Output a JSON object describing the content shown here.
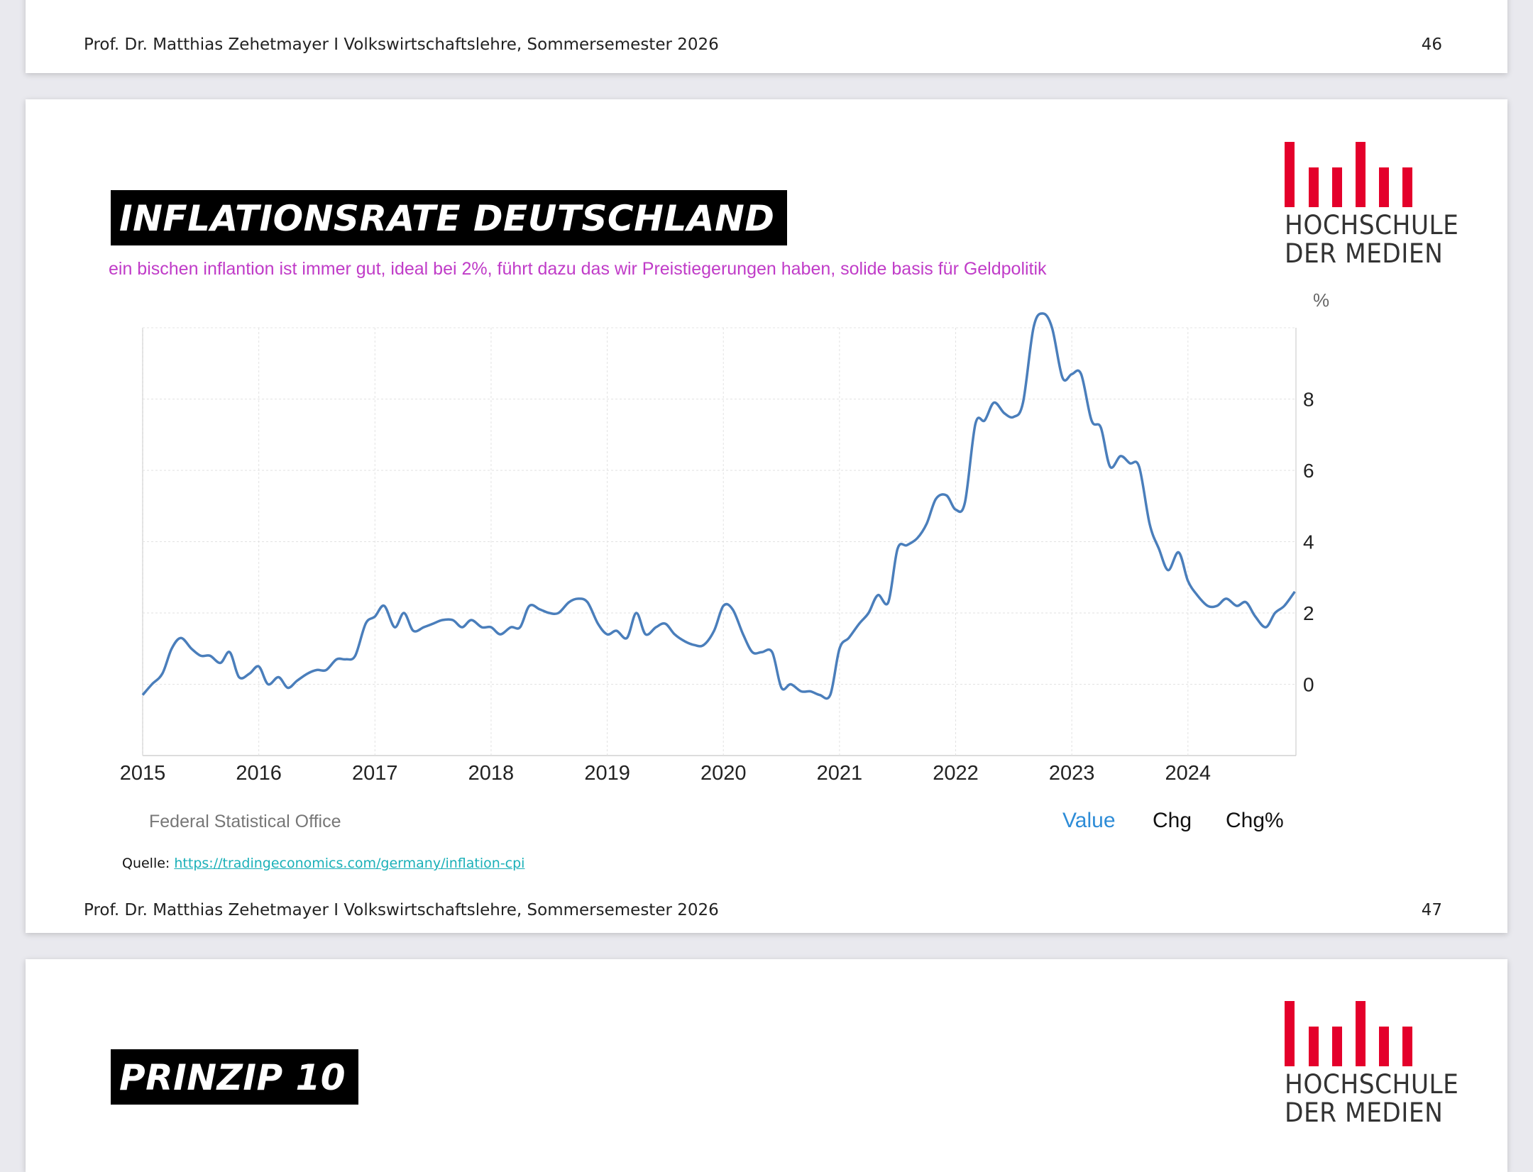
{
  "slide_46": {
    "footer_left": "Prof. Dr. Matthias Zehetmayer I Volkswirtschaftslehre, Sommersemester 2026",
    "page_number": "46"
  },
  "slide_47": {
    "title": "INFLATIONSRATE DEUTSCHLAND",
    "subtitle": "ein bischen inflantion ist immer gut, ideal bei 2%, führt dazu das wir Preistiegerungen  haben, solide basis für Geldpolitik",
    "logo_line1": "HOCHSCHULE",
    "logo_line2": "DER MEDIEN",
    "chart_source": "Federal Statistical Office",
    "legend": {
      "value": "Value",
      "chg": "Chg",
      "chgpct": "Chg%"
    },
    "source_label": "Quelle:",
    "source_url": "https://tradingeconomics.com/germany/inflation-cpi",
    "footer_left": "Prof. Dr. Matthias Zehetmayer I Volkswirtschaftslehre, Sommersemester 2026",
    "page_number": "47"
  },
  "slide_48": {
    "title": "PRINZIP 10",
    "logo_line1": "HOCHSCHULE",
    "logo_line2": "DER MEDIEN"
  },
  "colors": {
    "line": "#4a7ebb",
    "accent_red": "#e4002b",
    "legend_active": "#2d8cd7",
    "subtitle": "#c03cc8"
  },
  "chart_data": {
    "type": "line",
    "unit": "%",
    "xlim": [
      2015.0,
      2024.93
    ],
    "ylim": [
      -2,
      10
    ],
    "yticks": [
      0,
      2,
      4,
      6,
      8
    ],
    "xticks": [
      2015,
      2016,
      2017,
      2018,
      2019,
      2020,
      2021,
      2022,
      2023,
      2024
    ],
    "x": [
      2015.0,
      2015.08,
      2015.17,
      2015.25,
      2015.33,
      2015.42,
      2015.5,
      2015.58,
      2015.67,
      2015.75,
      2015.83,
      2015.92,
      2016.0,
      2016.08,
      2016.17,
      2016.25,
      2016.33,
      2016.42,
      2016.5,
      2016.58,
      2016.67,
      2016.75,
      2016.83,
      2016.92,
      2017.0,
      2017.08,
      2017.17,
      2017.25,
      2017.33,
      2017.42,
      2017.5,
      2017.58,
      2017.67,
      2017.75,
      2017.83,
      2017.92,
      2018.0,
      2018.08,
      2018.17,
      2018.25,
      2018.33,
      2018.42,
      2018.5,
      2018.58,
      2018.67,
      2018.75,
      2018.83,
      2018.92,
      2019.0,
      2019.08,
      2019.17,
      2019.25,
      2019.33,
      2019.42,
      2019.5,
      2019.58,
      2019.67,
      2019.75,
      2019.83,
      2019.92,
      2020.0,
      2020.08,
      2020.17,
      2020.25,
      2020.33,
      2020.42,
      2020.5,
      2020.58,
      2020.67,
      2020.75,
      2020.83,
      2020.92,
      2021.0,
      2021.08,
      2021.17,
      2021.25,
      2021.33,
      2021.42,
      2021.5,
      2021.58,
      2021.67,
      2021.75,
      2021.83,
      2021.92,
      2022.0,
      2022.08,
      2022.17,
      2022.25,
      2022.33,
      2022.42,
      2022.5,
      2022.58,
      2022.67,
      2022.75,
      2022.83,
      2022.92,
      2023.0,
      2023.08,
      2023.17,
      2023.25,
      2023.33,
      2023.42,
      2023.5,
      2023.58,
      2023.67,
      2023.75,
      2023.83,
      2023.92,
      2024.0,
      2024.08,
      2024.17,
      2024.25,
      2024.33,
      2024.42,
      2024.5,
      2024.58,
      2024.67,
      2024.75,
      2024.83,
      2024.92
    ],
    "series": [
      {
        "values": [
          -0.3,
          0.0,
          0.3,
          1.0,
          1.3,
          1.0,
          0.8,
          0.8,
          0.6,
          0.9,
          0.2,
          0.3,
          0.5,
          0.0,
          0.2,
          -0.1,
          0.1,
          0.3,
          0.4,
          0.4,
          0.7,
          0.7,
          0.8,
          1.7,
          1.9,
          2.2,
          1.6,
          2.0,
          1.5,
          1.6,
          1.7,
          1.8,
          1.8,
          1.6,
          1.8,
          1.6,
          1.6,
          1.4,
          1.6,
          1.6,
          2.2,
          2.1,
          2.0,
          2.0,
          2.3,
          2.4,
          2.3,
          1.7,
          1.4,
          1.5,
          1.3,
          2.0,
          1.4,
          1.6,
          1.7,
          1.4,
          1.2,
          1.1,
          1.1,
          1.5,
          2.2,
          2.1,
          1.4,
          0.9,
          0.9,
          0.9,
          -0.1,
          0.0,
          -0.2,
          -0.2,
          -0.3,
          -0.3,
          1.0,
          1.3,
          1.7,
          2.0,
          2.5,
          2.3,
          3.8,
          3.9,
          4.1,
          4.5,
          5.2,
          5.3,
          4.9,
          5.1,
          7.3,
          7.4,
          7.9,
          7.6,
          7.5,
          7.9,
          10.0,
          10.4,
          10.0,
          8.6,
          8.7,
          8.7,
          7.4,
          7.2,
          6.1,
          6.4,
          6.2,
          6.1,
          4.5,
          3.8,
          3.2,
          3.7,
          2.9,
          2.5,
          2.2,
          2.2,
          2.4,
          2.2,
          2.3,
          1.9,
          1.6,
          2.0,
          2.2,
          2.6
        ]
      }
    ]
  }
}
